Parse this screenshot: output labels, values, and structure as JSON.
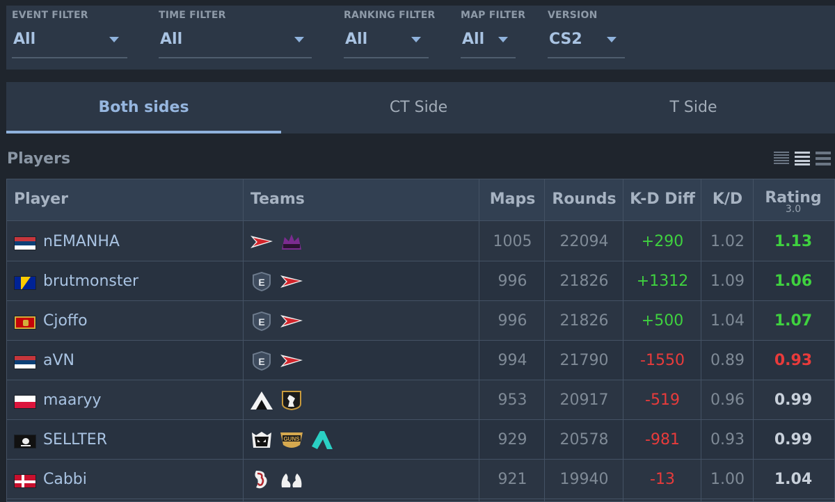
{
  "filters": [
    {
      "label": "EVENT FILTER",
      "value": "All"
    },
    {
      "label": "TIME FILTER",
      "value": "All"
    },
    {
      "label": "RANKING FILTER",
      "value": "All"
    },
    {
      "label": "MAP FILTER",
      "value": "All"
    },
    {
      "label": "VERSION",
      "value": "CS2"
    }
  ],
  "tabs": [
    "Both sides",
    "CT Side",
    "T Side"
  ],
  "players_title": "Players",
  "columns": {
    "player": "Player",
    "teams": "Teams",
    "maps": "Maps",
    "rounds": "Rounds",
    "kd_diff": "K-D Diff",
    "kd": "K/D",
    "rating": "Rating",
    "rating_version": "3.0"
  },
  "rows": [
    {
      "flag": "serbia",
      "name": "nEMANHA",
      "teams": [
        "red-flag-logo",
        "purple-wolf-logo"
      ],
      "maps": "1005",
      "rounds": "22094",
      "kd_diff": "+290",
      "kd": "1.02",
      "rating": "1.13"
    },
    {
      "flag": "bosnia",
      "name": "brutmonster",
      "teams": [
        "e-shield-logo",
        "red-flag-logo"
      ],
      "maps": "996",
      "rounds": "21826",
      "kd_diff": "+1312",
      "kd": "1.09",
      "rating": "1.06"
    },
    {
      "flag": "montenegro",
      "name": "Cjoffo",
      "teams": [
        "e-shield-logo",
        "red-flag-logo"
      ],
      "maps": "996",
      "rounds": "21826",
      "kd_diff": "+500",
      "kd": "1.04",
      "rating": "1.07"
    },
    {
      "flag": "serbia",
      "name": "aVN",
      "teams": [
        "e-shield-logo",
        "red-flag-logo"
      ],
      "maps": "994",
      "rounds": "21790",
      "kd_diff": "-1550",
      "kd": "0.89",
      "rating": "0.93"
    },
    {
      "flag": "poland",
      "name": "maaryy",
      "teams": [
        "triangle-logo",
        "rooster-logo"
      ],
      "maps": "953",
      "rounds": "20917",
      "kd_diff": "-519",
      "kd": "0.96",
      "rating": "0.99"
    },
    {
      "flag": "pirate",
      "name": "SELLTER",
      "teams": [
        "monster-logo",
        "guns-logo",
        "teal-a-logo"
      ],
      "maps": "929",
      "rounds": "20578",
      "kd_diff": "-981",
      "kd": "0.93",
      "rating": "0.99"
    },
    {
      "flag": "denmark",
      "name": "Cabbi",
      "teams": [
        "dragon-logo",
        "hands-logo"
      ],
      "maps": "921",
      "rounds": "19940",
      "kd_diff": "-13",
      "kd": "1.00",
      "rating": "1.04"
    }
  ],
  "colors": {
    "positive": "#3fd13f",
    "negative": "#e83b3b",
    "link": "#a9c3e2",
    "accent": "#8fb2dc"
  }
}
